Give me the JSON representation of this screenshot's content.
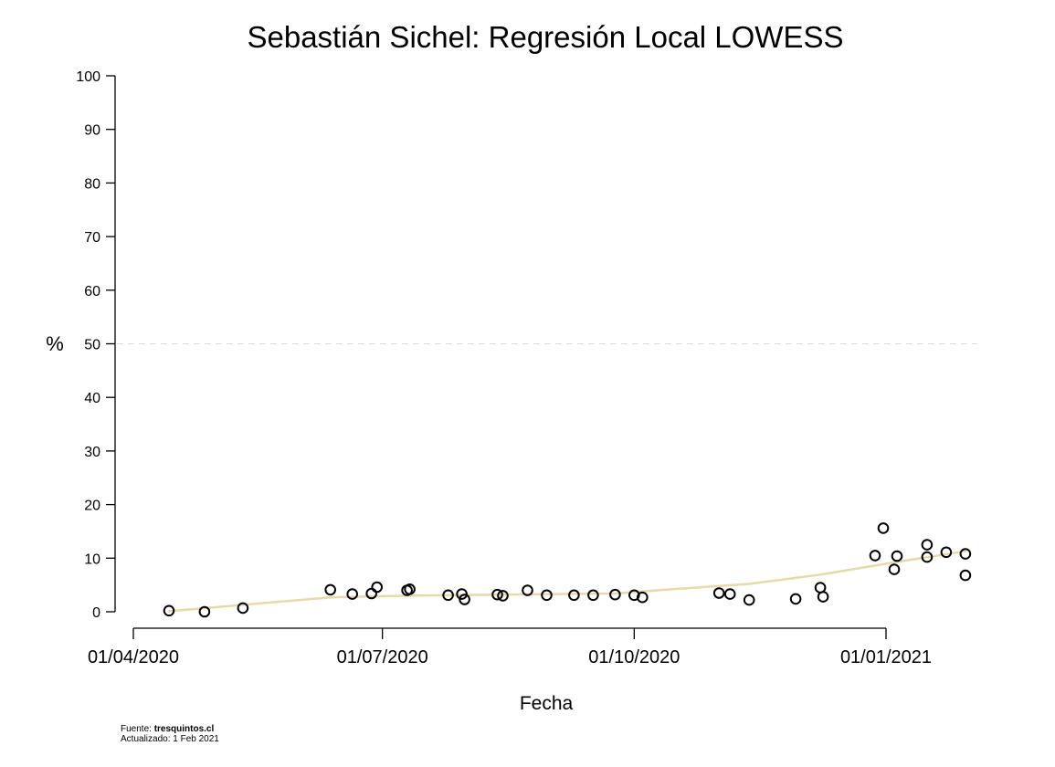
{
  "chart_data": {
    "type": "scatter",
    "title": "Sebastián Sichel: Regresión Local LOWESS",
    "xlabel": "Fecha",
    "ylabel": "%",
    "x_axis": "date",
    "xlim": [
      "2020-03-25",
      "2021-02-05"
    ],
    "ylim": [
      0,
      100
    ],
    "y_ticks": [
      0,
      10,
      20,
      30,
      40,
      50,
      60,
      70,
      80,
      90,
      100
    ],
    "x_ticks": [
      {
        "date": "2020-04-01",
        "label": "01/04/2020"
      },
      {
        "date": "2020-07-01",
        "label": "01/07/2020"
      },
      {
        "date": "2020-10-01",
        "label": "01/10/2020"
      },
      {
        "date": "2021-01-01",
        "label": "01/01/2021"
      }
    ],
    "reference_line": {
      "y": 50,
      "style": "dashed",
      "color": "#dddddd"
    },
    "grid": false,
    "colors": {
      "points": "#000000",
      "lowess": "#e8d9a8"
    },
    "series": [
      {
        "kind": "points",
        "points": [
          {
            "x": "2020-04-14",
            "y": 0.2
          },
          {
            "x": "2020-04-27",
            "y": 0.0
          },
          {
            "x": "2020-05-11",
            "y": 0.7
          },
          {
            "x": "2020-06-12",
            "y": 4.1
          },
          {
            "x": "2020-06-20",
            "y": 3.3
          },
          {
            "x": "2020-06-27",
            "y": 3.4
          },
          {
            "x": "2020-06-29",
            "y": 4.6
          },
          {
            "x": "2020-07-10",
            "y": 4.0
          },
          {
            "x": "2020-07-11",
            "y": 4.2
          },
          {
            "x": "2020-07-25",
            "y": 3.1
          },
          {
            "x": "2020-07-30",
            "y": 3.3
          },
          {
            "x": "2020-07-31",
            "y": 2.3
          },
          {
            "x": "2020-08-12",
            "y": 3.2
          },
          {
            "x": "2020-08-14",
            "y": 3.0
          },
          {
            "x": "2020-08-23",
            "y": 4.0
          },
          {
            "x": "2020-08-30",
            "y": 3.1
          },
          {
            "x": "2020-09-09",
            "y": 3.1
          },
          {
            "x": "2020-09-16",
            "y": 3.1
          },
          {
            "x": "2020-09-24",
            "y": 3.2
          },
          {
            "x": "2020-10-01",
            "y": 3.1
          },
          {
            "x": "2020-10-04",
            "y": 2.7
          },
          {
            "x": "2020-11-01",
            "y": 3.5
          },
          {
            "x": "2020-11-05",
            "y": 3.3
          },
          {
            "x": "2020-11-12",
            "y": 2.2
          },
          {
            "x": "2020-11-29",
            "y": 2.4
          },
          {
            "x": "2020-12-08",
            "y": 4.5
          },
          {
            "x": "2020-12-09",
            "y": 2.8
          },
          {
            "x": "2020-12-28",
            "y": 10.5
          },
          {
            "x": "2020-12-31",
            "y": 15.6
          },
          {
            "x": "2021-01-04",
            "y": 7.9
          },
          {
            "x": "2021-01-05",
            "y": 10.4
          },
          {
            "x": "2021-01-16",
            "y": 12.5
          },
          {
            "x": "2021-01-16",
            "y": 10.2
          },
          {
            "x": "2021-01-23",
            "y": 11.1
          },
          {
            "x": "2021-01-30",
            "y": 6.8
          },
          {
            "x": "2021-01-30",
            "y": 10.8
          }
        ]
      },
      {
        "kind": "lowess",
        "points": [
          {
            "x": "2020-04-14",
            "y": 0.1
          },
          {
            "x": "2020-05-11",
            "y": 1.3
          },
          {
            "x": "2020-06-12",
            "y": 2.7
          },
          {
            "x": "2020-07-10",
            "y": 3.0
          },
          {
            "x": "2020-08-14",
            "y": 3.2
          },
          {
            "x": "2020-09-24",
            "y": 3.4
          },
          {
            "x": "2020-10-15",
            "y": 4.2
          },
          {
            "x": "2020-11-12",
            "y": 5.2
          },
          {
            "x": "2020-12-09",
            "y": 7.0
          },
          {
            "x": "2021-01-05",
            "y": 9.3
          },
          {
            "x": "2021-01-30",
            "y": 11.3
          }
        ]
      }
    ]
  },
  "footer": {
    "source_label": "Fuente: ",
    "source_value": "tresquintos.cl",
    "updated": "Actualizado: 1 Feb 2021"
  }
}
